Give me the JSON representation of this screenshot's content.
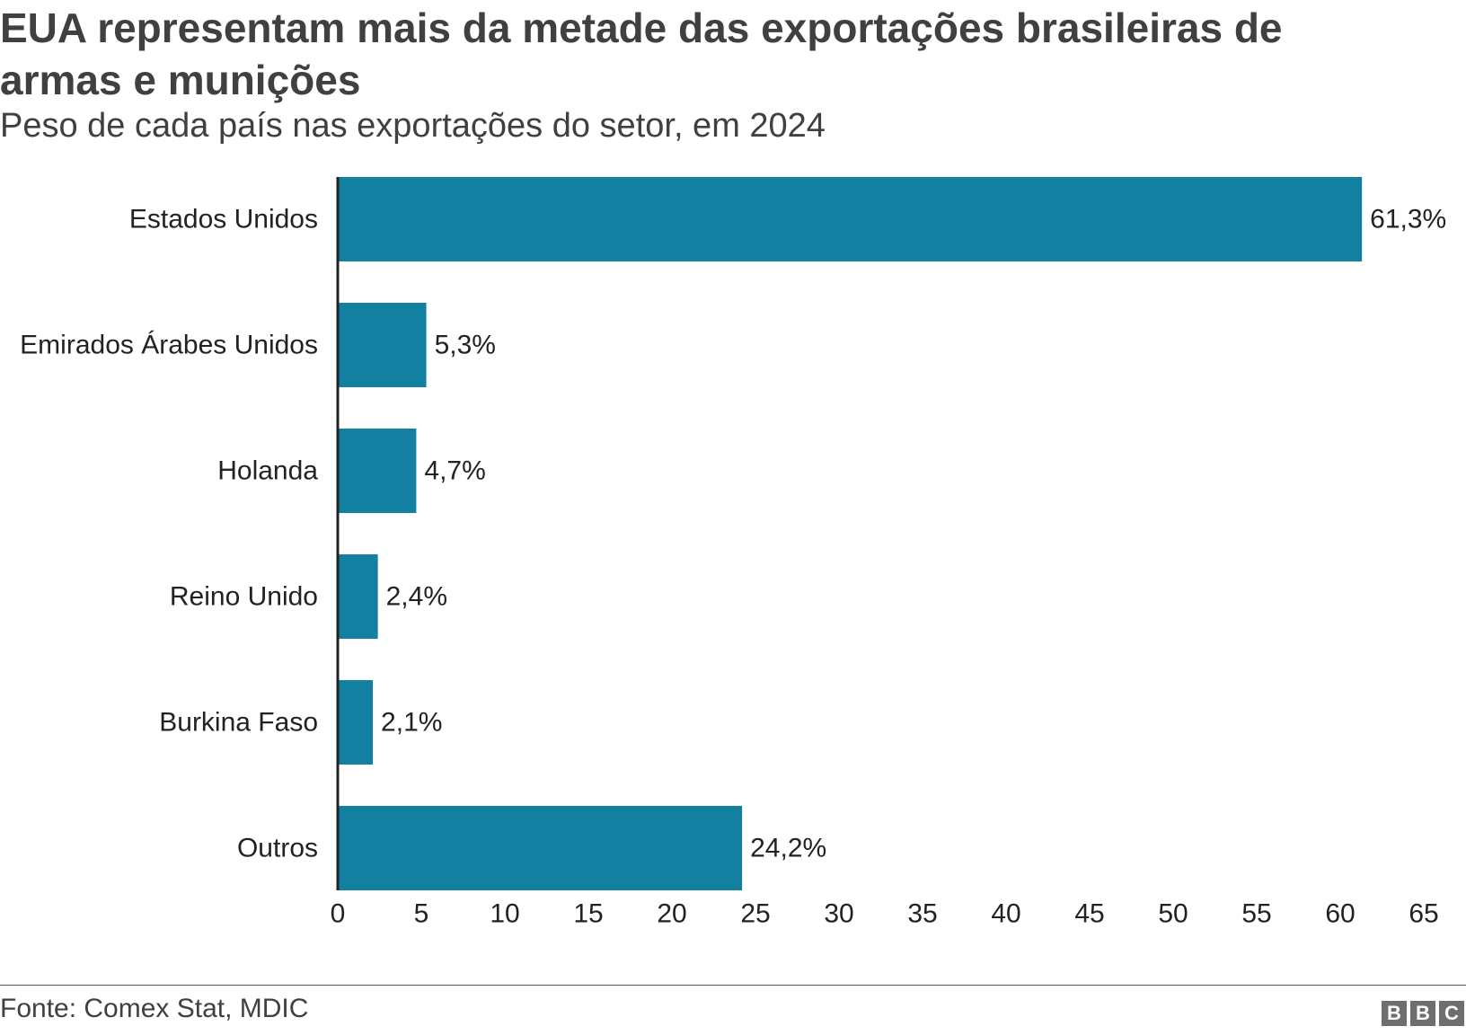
{
  "header": {
    "title": "EUA representam mais da metade das exportações brasileiras de armas e munições",
    "subtitle": "Peso de cada país nas exportações do setor, em 2024"
  },
  "footer": {
    "source": "Fonte: Comex Stat, MDIC",
    "logo_letters": [
      "B",
      "B",
      "C"
    ]
  },
  "chart_data": {
    "type": "bar",
    "orientation": "horizontal",
    "categories": [
      "Estados Unidos",
      "Emirados Árabes Unidos",
      "Holanda",
      "Reino Unido",
      "Burkina Faso",
      "Outros"
    ],
    "values": [
      61.3,
      5.3,
      4.7,
      2.4,
      2.1,
      24.2
    ],
    "value_labels": [
      "61,3%",
      "5,3%",
      "4,7%",
      "2,4%",
      "2,1%",
      "24,2%"
    ],
    "xticks": [
      0,
      5,
      10,
      15,
      20,
      25,
      30,
      35,
      40,
      45,
      50,
      55,
      60,
      65
    ],
    "xlim": [
      0,
      65
    ],
    "grid": false,
    "legend": "none",
    "bar_color": "#1380a1",
    "title": "",
    "xlabel": "",
    "ylabel": ""
  }
}
